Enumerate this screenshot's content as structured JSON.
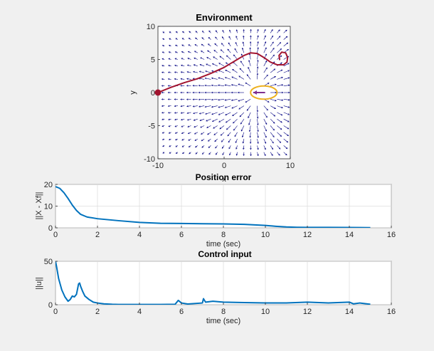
{
  "chart_data": [
    {
      "type": "line",
      "title": "Environment",
      "xlabel": "x",
      "ylabel": "y",
      "xlim": [
        -10,
        10
      ],
      "ylim": [
        -10,
        10
      ],
      "xticks": [
        -10,
        0,
        10
      ],
      "yticks": [
        -10,
        -5,
        0,
        5,
        10
      ],
      "grid": false,
      "colors": {
        "trajectory": "#a2142f",
        "goal": "#edb120",
        "quiver": "#000080",
        "start": "#a2142f"
      },
      "series": [
        {
          "role": "trajectory",
          "x": [
            -10,
            -8,
            -6,
            -4,
            -2,
            0,
            1,
            2,
            3,
            4,
            5,
            6,
            7,
            8,
            9,
            9.5,
            9.6,
            9.3,
            8.7,
            8.3,
            8.4
          ],
          "y": [
            0,
            0.8,
            1.5,
            2.1,
            2.9,
            3.8,
            4.4,
            5.0,
            5.6,
            6.0,
            5.9,
            5.3,
            4.6,
            4.2,
            4.2,
            4.6,
            5.3,
            6.0,
            6.1,
            5.6,
            4.9
          ]
        }
      ],
      "start_marker": {
        "x": -10,
        "y": 0
      },
      "goal_ellipse": {
        "cx": 6,
        "cy": 0,
        "rx": 2,
        "ry": 1
      },
      "control_arrow": {
        "x1": 6.2,
        "y1": 0,
        "x2": 4.4,
        "y2": 0
      },
      "vector_field": {
        "source": [
          5,
          0
        ],
        "strength": 8
      }
    },
    {
      "type": "line",
      "title": "Position error",
      "xlabel": "time (sec)",
      "ylabel": "||X - Xf||",
      "xlim": [
        0,
        16
      ],
      "ylim": [
        0,
        20
      ],
      "xticks": [
        0,
        2,
        4,
        6,
        8,
        10,
        12,
        14,
        16
      ],
      "yticks": [
        0,
        10,
        20
      ],
      "grid": true,
      "colors": {
        "line": "#0072bd"
      },
      "series": [
        {
          "x": [
            0,
            0.2,
            0.4,
            0.6,
            0.8,
            1.0,
            1.2,
            1.5,
            2,
            3,
            4,
            5,
            6,
            7,
            8,
            9,
            10,
            10.5,
            11,
            11.5,
            12,
            13,
            14,
            15
          ],
          "y": [
            19.0,
            18.2,
            16.2,
            13.5,
            10.5,
            8.0,
            6.2,
            5.0,
            4.2,
            3.3,
            2.5,
            2.1,
            2.0,
            1.9,
            1.8,
            1.6,
            1.1,
            0.7,
            0.4,
            0.25,
            0.2,
            0.2,
            0.15,
            0.1
          ]
        }
      ]
    },
    {
      "type": "line",
      "title": "Control input",
      "xlabel": "time (sec)",
      "ylabel": "||u||",
      "xlim": [
        0,
        16
      ],
      "ylim": [
        0,
        50
      ],
      "xticks": [
        0,
        2,
        4,
        6,
        8,
        10,
        12,
        14,
        16
      ],
      "yticks": [
        0,
        50
      ],
      "grid": true,
      "colors": {
        "line": "#0072bd"
      },
      "series": [
        {
          "x": [
            0,
            0.05,
            0.15,
            0.3,
            0.45,
            0.6,
            0.7,
            0.8,
            0.9,
            1.0,
            1.05,
            1.1,
            1.15,
            1.2,
            1.3,
            1.4,
            1.6,
            1.8,
            2.0,
            2.3,
            2.7,
            3.0,
            4.0,
            5.0,
            5.7,
            5.85,
            6.0,
            6.3,
            7.0,
            7.05,
            7.15,
            7.5,
            8.0,
            9.0,
            10.0,
            11.0,
            12.0,
            13.0,
            14.0,
            14.2,
            14.5,
            15.0
          ],
          "y": [
            50,
            44,
            30,
            17,
            9,
            4,
            6,
            10,
            9,
            12,
            18,
            24,
            25,
            21,
            15,
            10,
            6,
            3,
            2,
            1,
            0.5,
            0.3,
            0.3,
            0.3,
            0.5,
            5,
            2,
            0.8,
            2,
            7,
            3,
            4,
            3,
            2.5,
            2,
            2,
            3,
            2,
            3,
            1,
            2,
            0.5
          ]
        }
      ]
    }
  ]
}
